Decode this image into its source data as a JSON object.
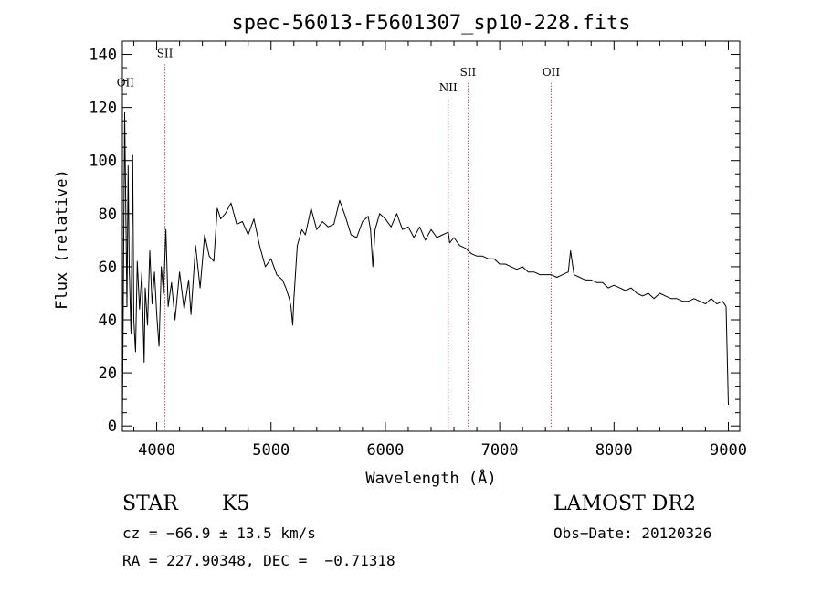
{
  "chart_data": {
    "type": "line",
    "title": "spec-56013-F5601307_sp10-228.fits",
    "xlabel": "Wavelength (Å)",
    "ylabel": "Flux (relative)",
    "xlim": [
      3700,
      9100
    ],
    "ylim": [
      -2,
      145
    ],
    "x_ticks": [
      4000,
      5000,
      6000,
      7000,
      8000,
      9000
    ],
    "y_ticks": [
      0,
      20,
      40,
      60,
      80,
      100,
      120,
      140
    ],
    "grid": false,
    "series": [
      {
        "x": [
          3700,
          3720,
          3740,
          3750,
          3760,
          3775,
          3790,
          3800,
          3815,
          3830,
          3850,
          3870,
          3890,
          3900,
          3920,
          3940,
          3960,
          3980,
          4000,
          4020,
          4040,
          4060,
          4080,
          4100,
          4130,
          4160,
          4200,
          4240,
          4280,
          4300,
          4340,
          4380,
          4420,
          4460,
          4500,
          4530,
          4560,
          4600,
          4650,
          4700,
          4750,
          4800,
          4850,
          4900,
          4950,
          5000,
          5050,
          5100,
          5130,
          5160,
          5175,
          5190,
          5200,
          5230,
          5270,
          5300,
          5350,
          5400,
          5450,
          5500,
          5550,
          5600,
          5650,
          5700,
          5750,
          5800,
          5850,
          5870,
          5890,
          5910,
          5950,
          6000,
          6050,
          6100,
          6150,
          6200,
          6250,
          6300,
          6350,
          6400,
          6450,
          6500,
          6550,
          6563,
          6600,
          6650,
          6700,
          6750,
          6800,
          6850,
          6900,
          6950,
          7000,
          7050,
          7100,
          7150,
          7200,
          7250,
          7300,
          7350,
          7400,
          7450,
          7500,
          7550,
          7600,
          7620,
          7650,
          7700,
          7750,
          7800,
          7850,
          7900,
          7950,
          8000,
          8050,
          8100,
          8150,
          8200,
          8250,
          8300,
          8350,
          8400,
          8450,
          8500,
          8550,
          8600,
          8650,
          8700,
          8750,
          8800,
          8850,
          8900,
          8950,
          8980,
          9000
        ],
        "y": [
          0,
          118,
          45,
          98,
          60,
          35,
          102,
          40,
          28,
          62,
          44,
          58,
          24,
          52,
          38,
          66,
          46,
          58,
          42,
          30,
          60,
          50,
          74,
          45,
          54,
          40,
          58,
          44,
          55,
          42,
          68,
          52,
          72,
          64,
          62,
          82,
          78,
          80,
          84,
          76,
          77,
          72,
          78,
          68,
          60,
          63,
          57,
          55,
          52,
          48,
          45,
          38,
          48,
          68,
          74,
          72,
          82,
          74,
          77,
          75,
          76,
          85,
          79,
          72,
          71,
          77,
          79,
          74,
          60,
          74,
          80,
          78,
          75,
          80,
          74,
          75,
          71,
          75,
          70,
          74,
          71,
          72,
          73,
          69,
          71,
          68,
          67,
          65,
          64,
          64,
          63,
          63,
          61,
          61,
          60,
          59,
          60,
          58,
          58,
          57,
          57,
          57,
          56,
          57,
          58,
          66,
          57,
          56,
          55,
          55,
          54,
          54,
          52,
          53,
          52,
          51,
          52,
          50,
          49,
          50,
          48,
          50,
          49,
          48,
          48,
          47,
          47,
          48,
          47,
          46,
          48,
          46,
          47,
          45,
          8
        ]
      }
    ],
    "line_ids": [
      {
        "label": "OII",
        "x": 3727,
        "y": 128,
        "dotted": false
      },
      {
        "label": "SII",
        "x": 4072,
        "y": 139,
        "dotted": true
      },
      {
        "label": "NII",
        "x": 6550,
        "y": 126,
        "dotted": true
      },
      {
        "label": "SII",
        "x": 6723,
        "y": 132,
        "dotted": true
      },
      {
        "label": "OII",
        "x": 7450,
        "y": 132,
        "dotted": true
      }
    ]
  },
  "info": {
    "object_class": "STAR",
    "subclass": "K5",
    "cz": "cz = −66.9 ± 13.5 km/s",
    "radec": "RA = 227.90348, DEC =  −0.71318",
    "survey": "LAMOST DR2",
    "obs_date": "Obs−Date: 20120326"
  },
  "colors": {
    "line": "#000000",
    "marker": "#8b1a1a",
    "background": "#ffffff"
  }
}
